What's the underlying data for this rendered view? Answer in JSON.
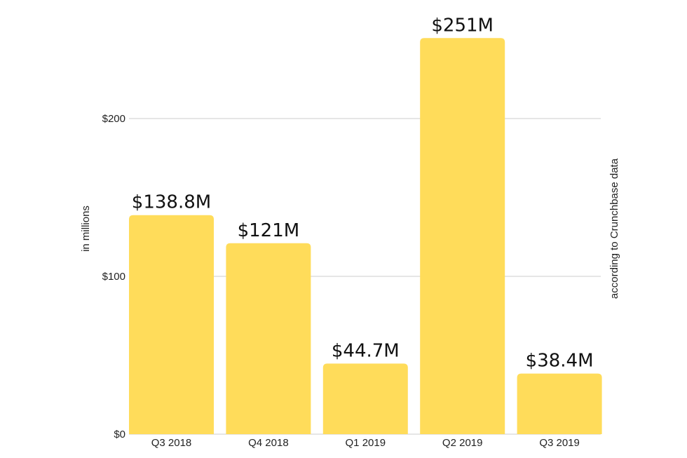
{
  "chart_data": {
    "type": "bar",
    "title": "",
    "categories": [
      "Q3 2018",
      "Q4 2018",
      "Q1 2019",
      "Q2 2019",
      "Q3 2019"
    ],
    "values": [
      138.8,
      121,
      44.7,
      251,
      38.4
    ],
    "data_labels": [
      "$138.8M",
      "$121M",
      "$44.7M",
      "$251M",
      "$38.4M"
    ],
    "xlabel": "",
    "ylabel": "in millions",
    "right_label": "according to Crunchbase data",
    "ylim": [
      0,
      251
    ],
    "yticks": [
      0,
      100,
      200
    ],
    "ytick_labels": [
      "$0",
      "$100",
      "$200"
    ],
    "grid": true,
    "bar_color": "#FFDC5A",
    "grid_color": "#cccccc"
  }
}
